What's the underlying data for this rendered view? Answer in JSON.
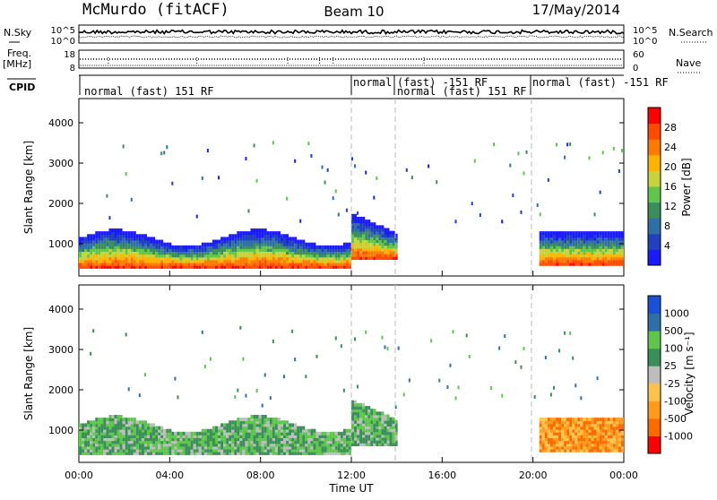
{
  "header": {
    "station": "McMurdo (fitACF)",
    "beam": "Beam 10",
    "date": "17/May/2014"
  },
  "top_panel": {
    "left_label": "N.Sky",
    "right_label": "N.Search",
    "left_ticks": [
      "10^5",
      "10^0"
    ],
    "right_ticks": [
      "10^5",
      "10^0"
    ]
  },
  "freq_panel": {
    "left_label_1": "Freq.",
    "left_label_2": "[MHz]",
    "right_label": "Nave",
    "left_ticks": [
      "18",
      "8"
    ],
    "right_ticks": [
      "60",
      "0"
    ]
  },
  "cpid": {
    "label": "CPID",
    "segments": [
      {
        "text": "normal (fast) 151 RF",
        "start": 0,
        "end": 12
      },
      {
        "text": "normal",
        "start": 12,
        "end": 14
      },
      {
        "text": "(fast) -151 RF",
        "start": 14,
        "end": 20
      },
      {
        "text": "normal (fast) 151 RF",
        "start": 14,
        "end": 20
      },
      {
        "text": "normal (fast) -151 RF",
        "start": 20,
        "end": 24
      }
    ]
  },
  "colors": {
    "power": [
      "#1a1aff",
      "#2040c0",
      "#2f6fa8",
      "#3a8e5a",
      "#5fc64c",
      "#c8d23a",
      "#ffb300",
      "#ff7a00",
      "#ff4a00",
      "#ff0000"
    ],
    "velocity": [
      "#ff0000",
      "#ff6a00",
      "#ff9a1a",
      "#ffc24a",
      "#bdbdbd",
      "#3a8e5a",
      "#5fc64c",
      "#2f6fa8",
      "#1a4fd8"
    ]
  },
  "chart_data": [
    {
      "type": "heatmap",
      "name": "power",
      "ylabel": "Slant Range [km]",
      "yticks": [
        "4000",
        "3000",
        "2000",
        "1000"
      ],
      "xlim": [
        0,
        24
      ],
      "ylim": [
        200,
        4600
      ],
      "colorbar_label": "Power [dB]",
      "colorbar_ticks": [
        "28",
        "24",
        "20",
        "16",
        "12",
        "8",
        "4"
      ],
      "scatter_extent_km": [
        {
          "from": 0,
          "to": 12,
          "bottom": 400,
          "top": 1300
        },
        {
          "from": 12,
          "to": 14,
          "bottom": 600,
          "top": 1800
        },
        {
          "from": 20.2,
          "to": 24,
          "bottom": 500,
          "top": 1300
        }
      ]
    },
    {
      "type": "heatmap",
      "name": "velocity",
      "ylabel": "Slant Range [km]",
      "yticks": [
        "4000",
        "3000",
        "2000",
        "1000"
      ],
      "xlim": [
        0,
        24
      ],
      "ylim": [
        200,
        4600
      ],
      "colorbar_label": "Velocity [m s⁻¹]",
      "colorbar_ticks": [
        "1000",
        "500",
        "100",
        "25",
        "-25",
        "-100",
        "-500",
        "-1000"
      ]
    }
  ],
  "x_axis": {
    "ticks": [
      "00:00",
      "04:00",
      "08:00",
      "12:00",
      "16:00",
      "20:00",
      "00:00"
    ],
    "label": "Time UT"
  }
}
